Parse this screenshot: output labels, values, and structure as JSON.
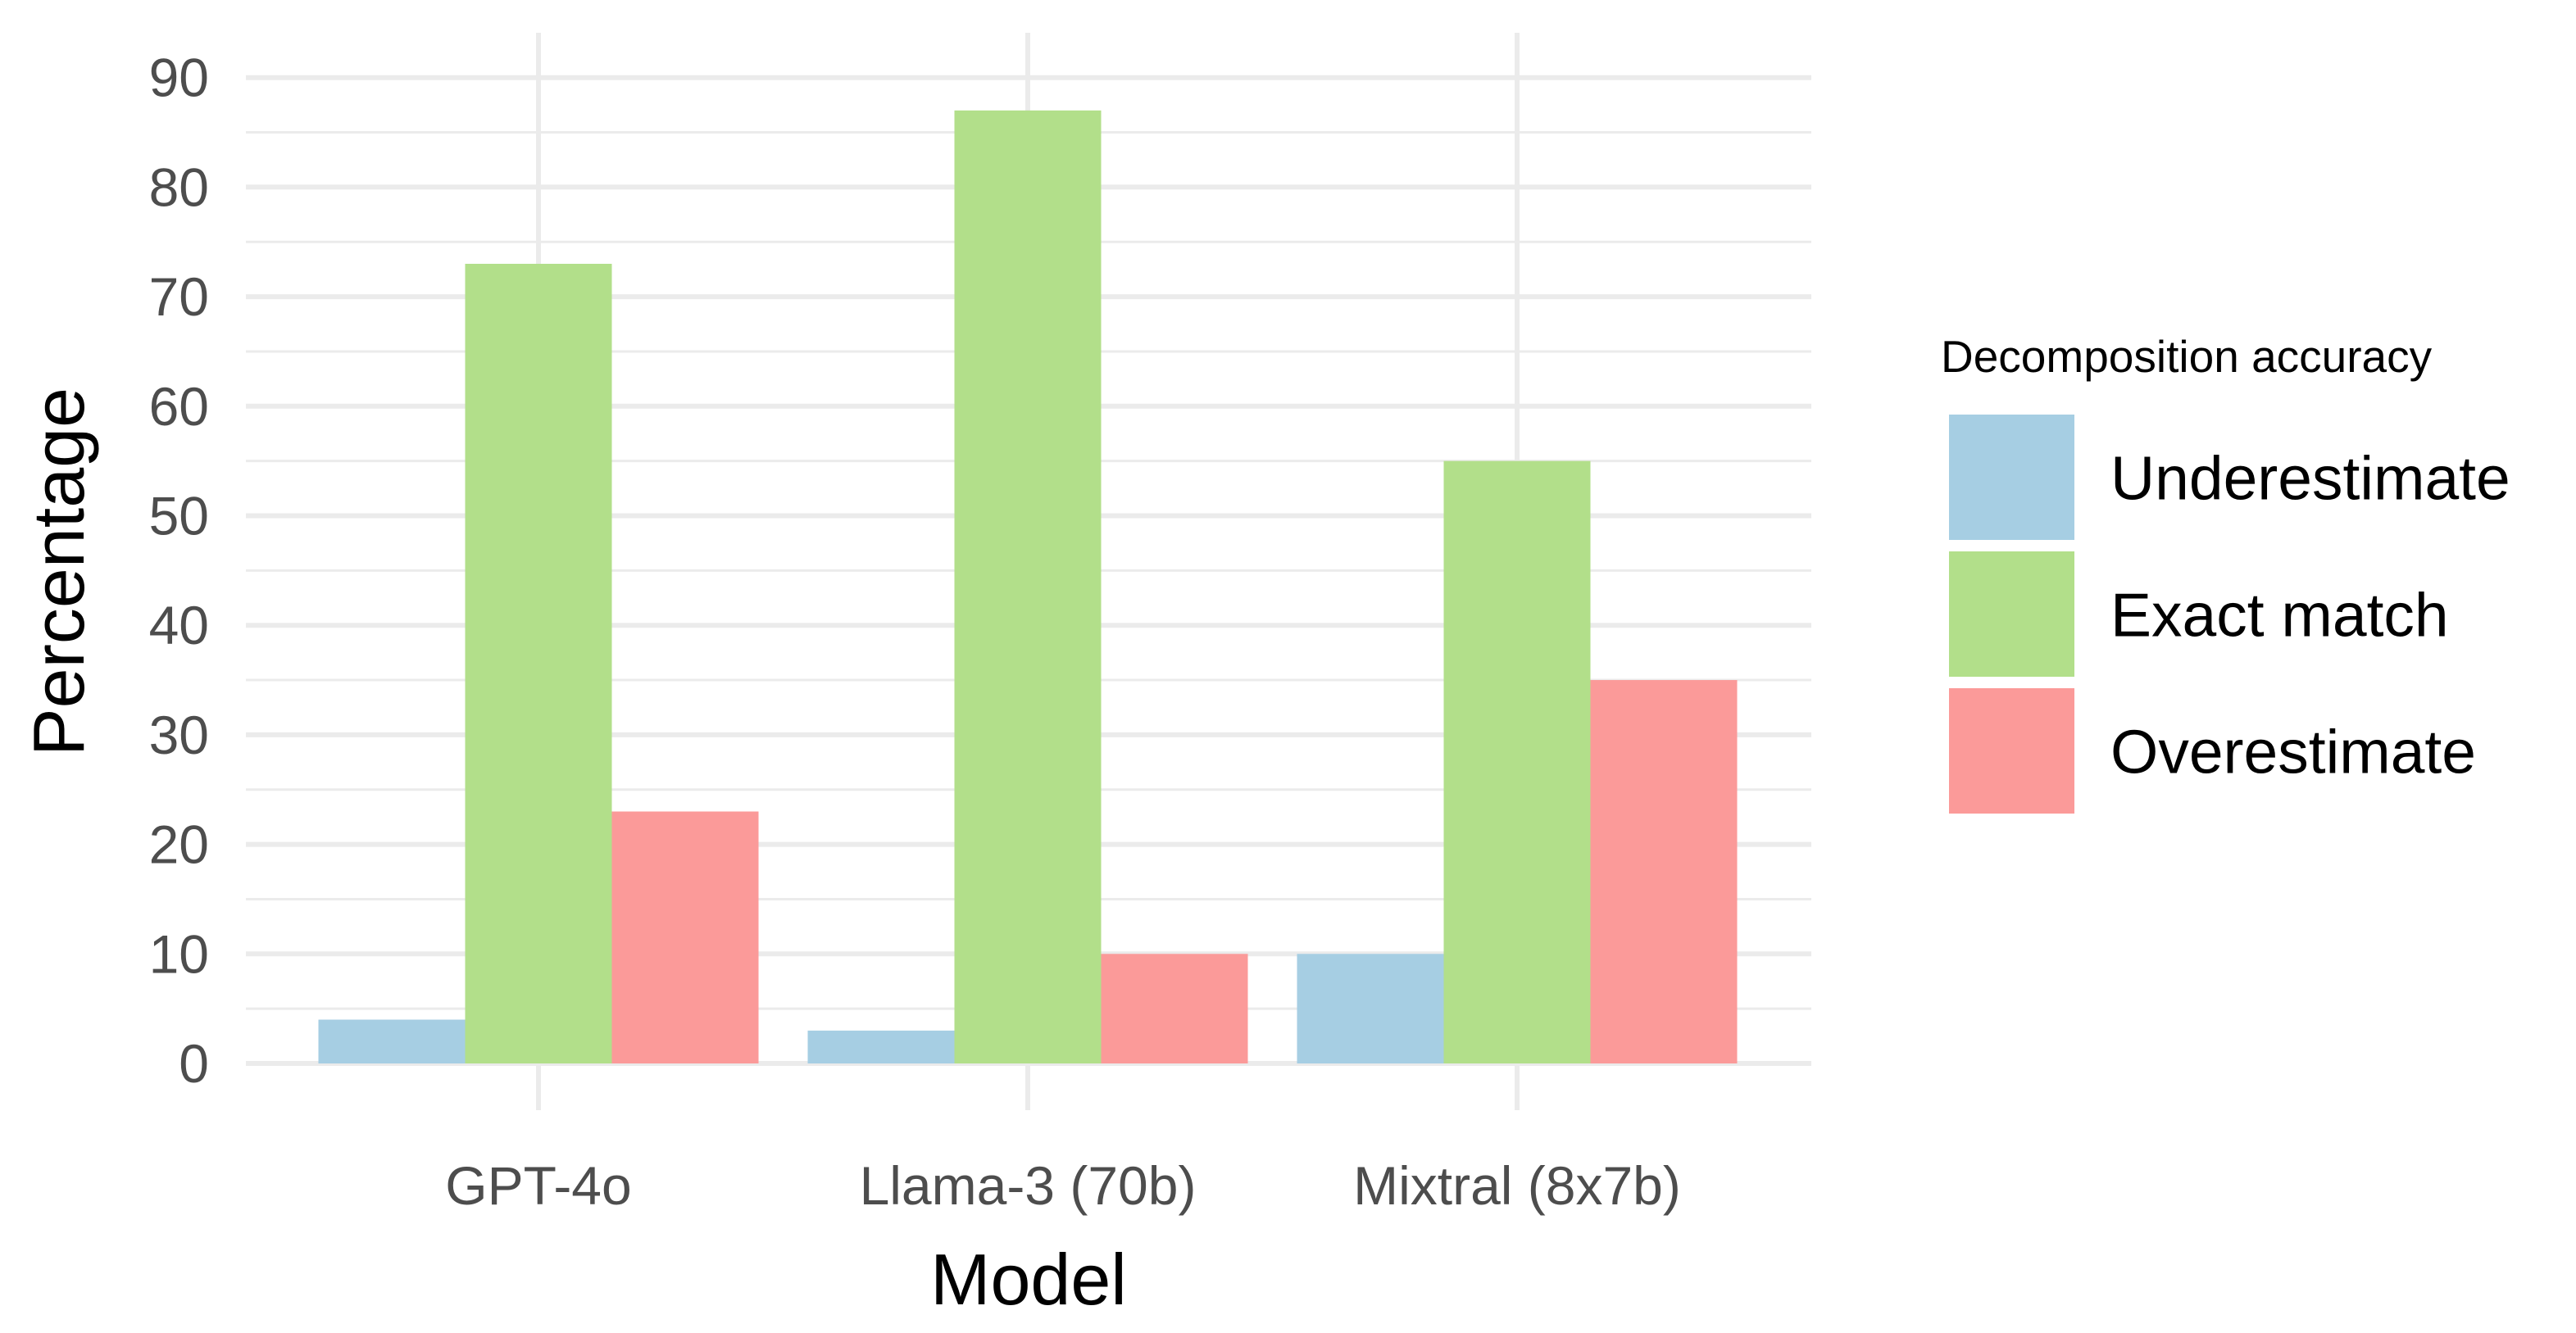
{
  "chart_data": {
    "type": "bar",
    "xlabel": "Model",
    "ylabel": "Percentage",
    "categories": [
      "GPT-4o",
      "Llama-3 (70b)",
      "Mixtral (8x7b)"
    ],
    "series": [
      {
        "name": "Underestimate",
        "values": [
          4,
          3,
          10
        ],
        "color": "#a6cee3"
      },
      {
        "name": "Exact match",
        "values": [
          73,
          87,
          55
        ],
        "color": "#b2df8a"
      },
      {
        "name": "Overestimate",
        "values": [
          23,
          10,
          35
        ],
        "color": "#fb9a99"
      }
    ],
    "yticks": [
      0,
      10,
      20,
      30,
      40,
      50,
      60,
      70,
      80,
      90
    ],
    "ylim": [
      0,
      90
    ],
    "grid": true,
    "legend": {
      "title": "Decomposition accuracy",
      "placement": "right"
    },
    "colors": {
      "grid": "#ebebeb",
      "tick_text": "#4d4d4d"
    }
  }
}
